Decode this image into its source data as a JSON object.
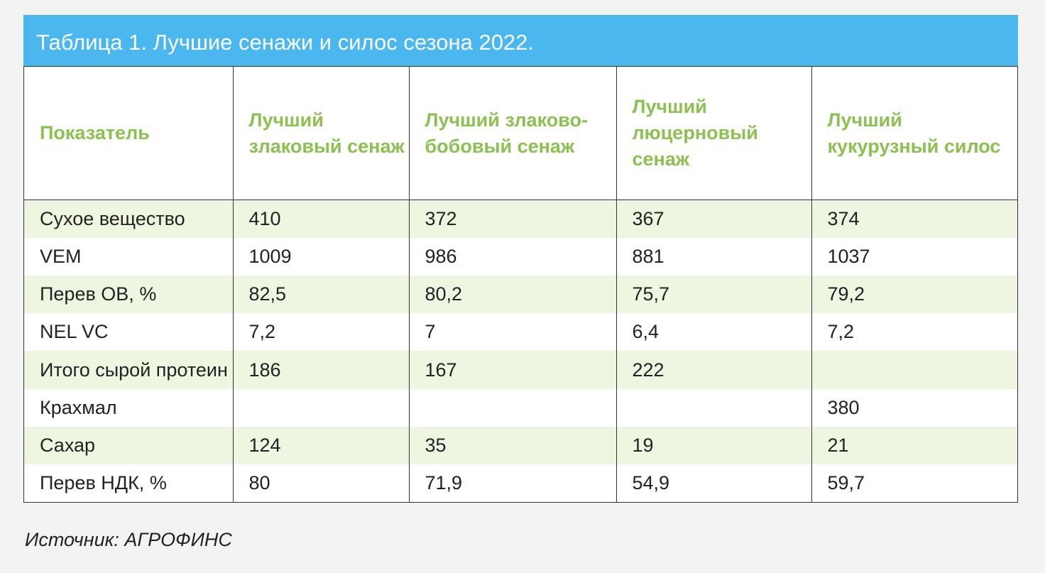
{
  "title": "Таблица 1. Лучшие сенажи и силос сезона 2022.",
  "headers": [
    "Показатель",
    "Лучший злаковый сенаж",
    "Лучший злаково-бобовый сенаж",
    "Лучший люцерновый сенаж",
    "Лучший кукурузный силос"
  ],
  "rows": [
    [
      "Сухое вещество",
      "410",
      "372",
      "367",
      "374"
    ],
    [
      "VEM",
      "1009",
      "986",
      "881",
      "1037"
    ],
    [
      "Перев ОВ, %",
      "82,5",
      "80,2",
      "75,7",
      "79,2"
    ],
    [
      "NEL VC",
      "7,2",
      "7",
      "6,4",
      "7,2"
    ],
    [
      "Итого сырой протеин",
      "186",
      "167",
      "222",
      ""
    ],
    [
      "Крахмал",
      "",
      "",
      "",
      "380"
    ],
    [
      "Сахар",
      "124",
      "35",
      "19",
      "21"
    ],
    [
      "Перев НДК, %",
      "80",
      "71,9",
      "54,9",
      "59,7"
    ]
  ],
  "source": "Источник: АГРОФИНС",
  "colors": {
    "title_bg": "#4ab7ee",
    "header_text": "#8cc152",
    "stripe": "#eef5e1"
  }
}
